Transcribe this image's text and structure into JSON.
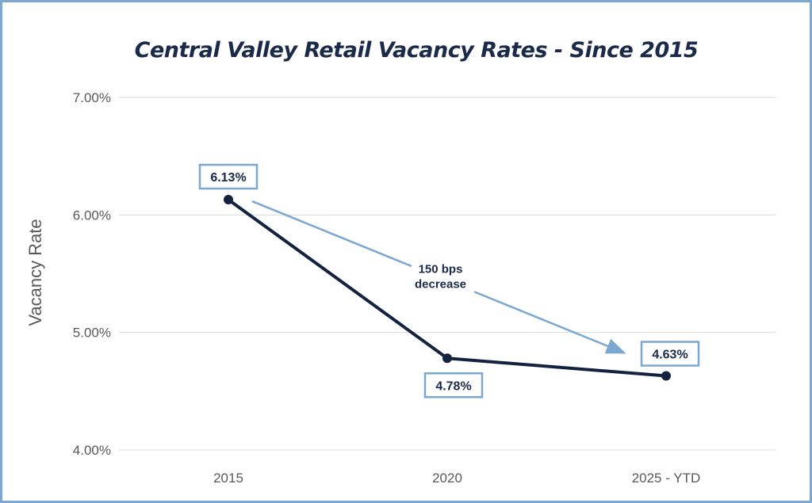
{
  "chart_data": {
    "type": "line",
    "title": "Central Valley Retail Vacancy Rates - Since 2015",
    "xlabel": "",
    "ylabel": "Vacancy Rate",
    "categories": [
      "2015",
      "2020",
      "2025 - YTD"
    ],
    "series": [
      {
        "values": [
          6.13,
          4.78,
          4.63
        ],
        "color": "#13223f"
      }
    ],
    "data_labels": [
      "6.13%",
      "4.78%",
      "4.63%"
    ],
    "ylim": [
      4.0,
      7.0
    ],
    "yticks": [
      {
        "value": 4.0,
        "label": "4.00%"
      },
      {
        "value": 5.0,
        "label": "5.00%"
      },
      {
        "value": 6.0,
        "label": "6.00%"
      },
      {
        "value": 7.0,
        "label": "7.00%"
      }
    ],
    "grid": true,
    "legend": "none",
    "annotation": {
      "lines": [
        "150 bps",
        "decrease"
      ],
      "from_category": "2015",
      "to_category": "2025 - YTD",
      "arrow_color": "#7ba7d1"
    },
    "colors": {
      "line": "#13223f",
      "accent": "#7ba7d1",
      "grid": "#d9d9d9",
      "text": "#1b2a4a",
      "axis_text": "#595959"
    }
  }
}
